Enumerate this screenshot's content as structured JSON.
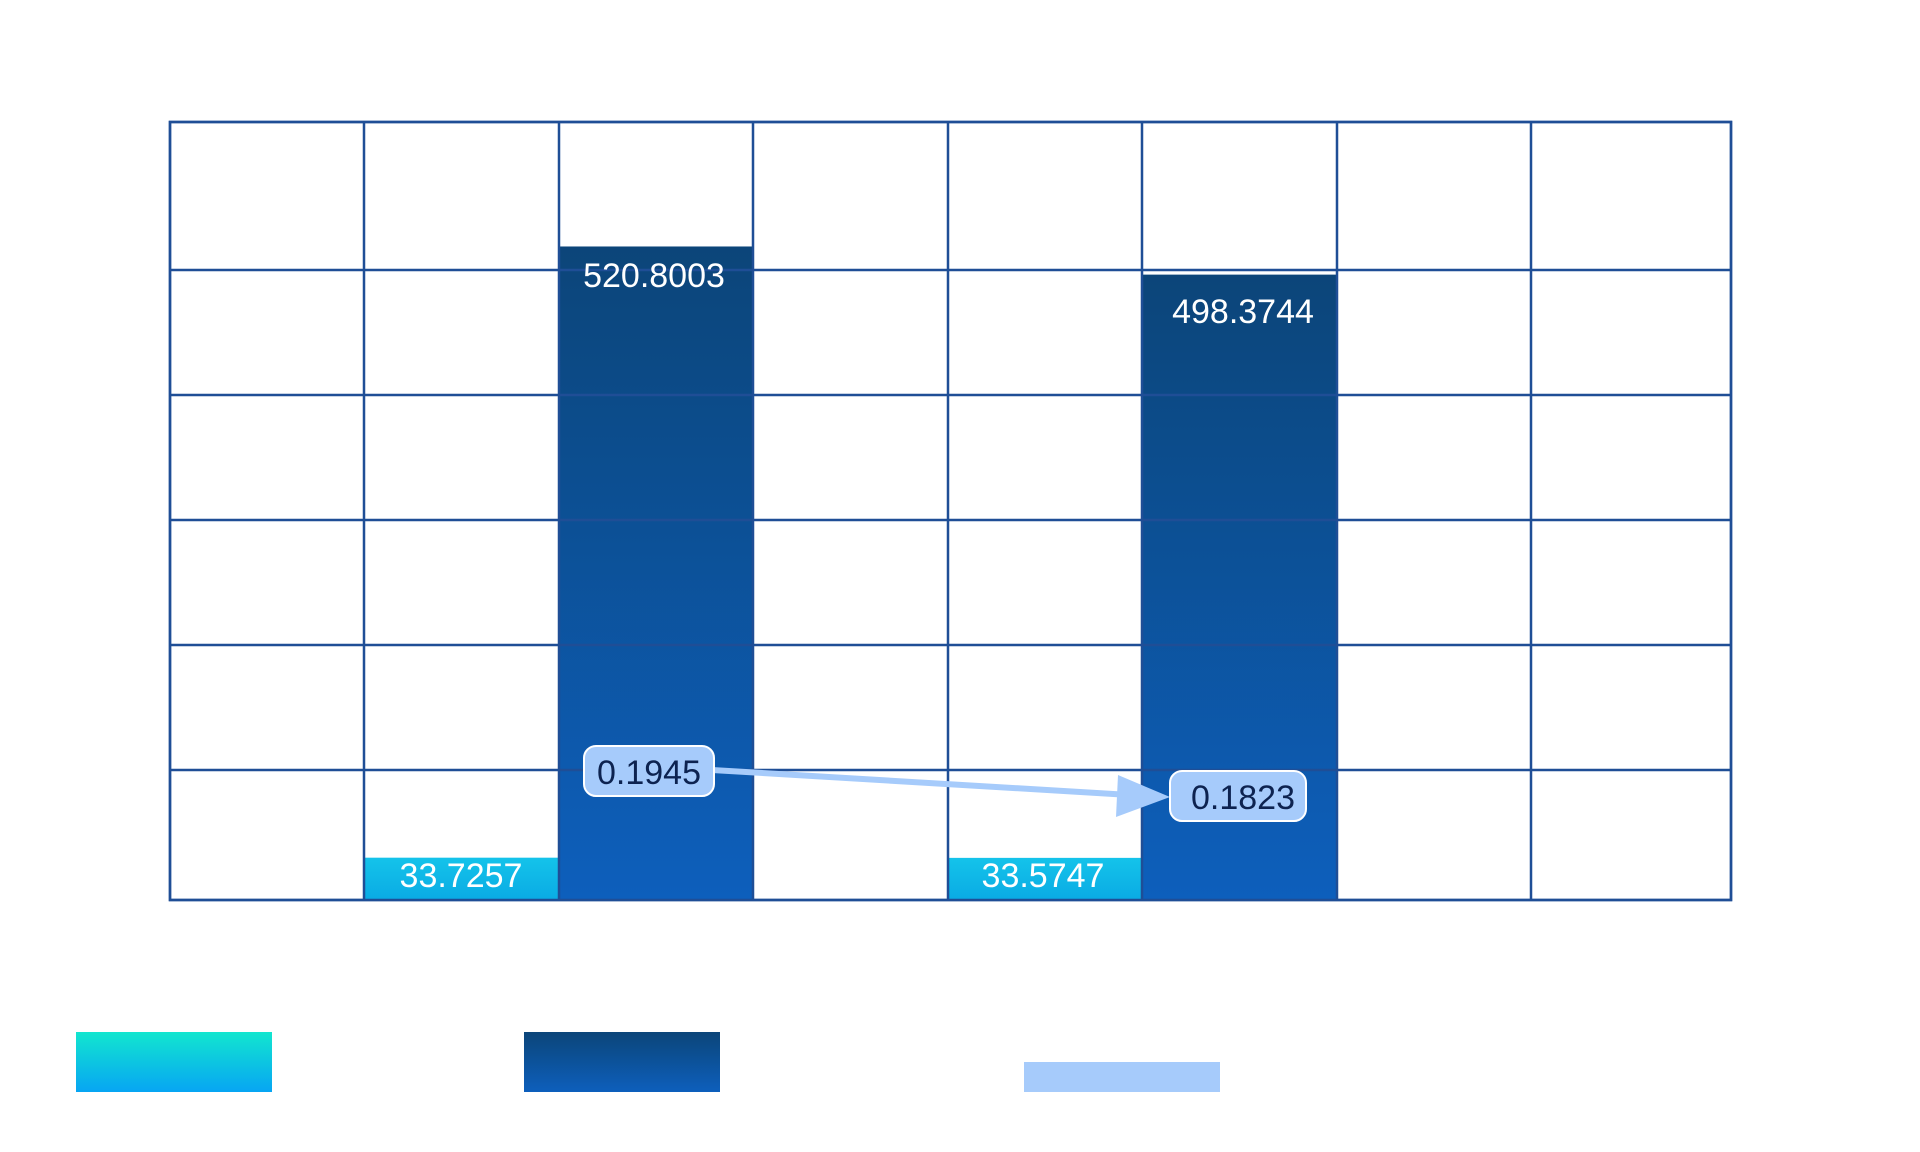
{
  "chart_data": {
    "type": "bar",
    "title": "",
    "xlabel": "",
    "ylabel": "",
    "ylim": [
      0,
      620
    ],
    "categories": [
      "",
      "",
      "",
      "",
      "",
      "",
      "",
      ""
    ],
    "series": [
      {
        "name": "",
        "kind": "bar",
        "color": "#10b8e8",
        "values": [
          null,
          33.7257,
          null,
          null,
          33.5747,
          null,
          null,
          null
        ]
      },
      {
        "name": "",
        "kind": "bar",
        "color": "#0c57ad",
        "values": [
          null,
          null,
          520.8003,
          null,
          null,
          498.3744,
          null,
          null
        ]
      },
      {
        "name": "",
        "kind": "line",
        "color": "#a6cbfb",
        "points": [
          {
            "column": 2,
            "value": 0.1945
          },
          {
            "column": 5,
            "value": 0.1823
          }
        ]
      }
    ],
    "labels": {
      "s1_b": "33.7257",
      "s1_e": "33.5747",
      "s2_c": "520.8003",
      "s2_f": "498.3744",
      "s3_c": "0.1945",
      "s3_f": "0.1823"
    },
    "legend_position": "bottom",
    "grid": true
  }
}
